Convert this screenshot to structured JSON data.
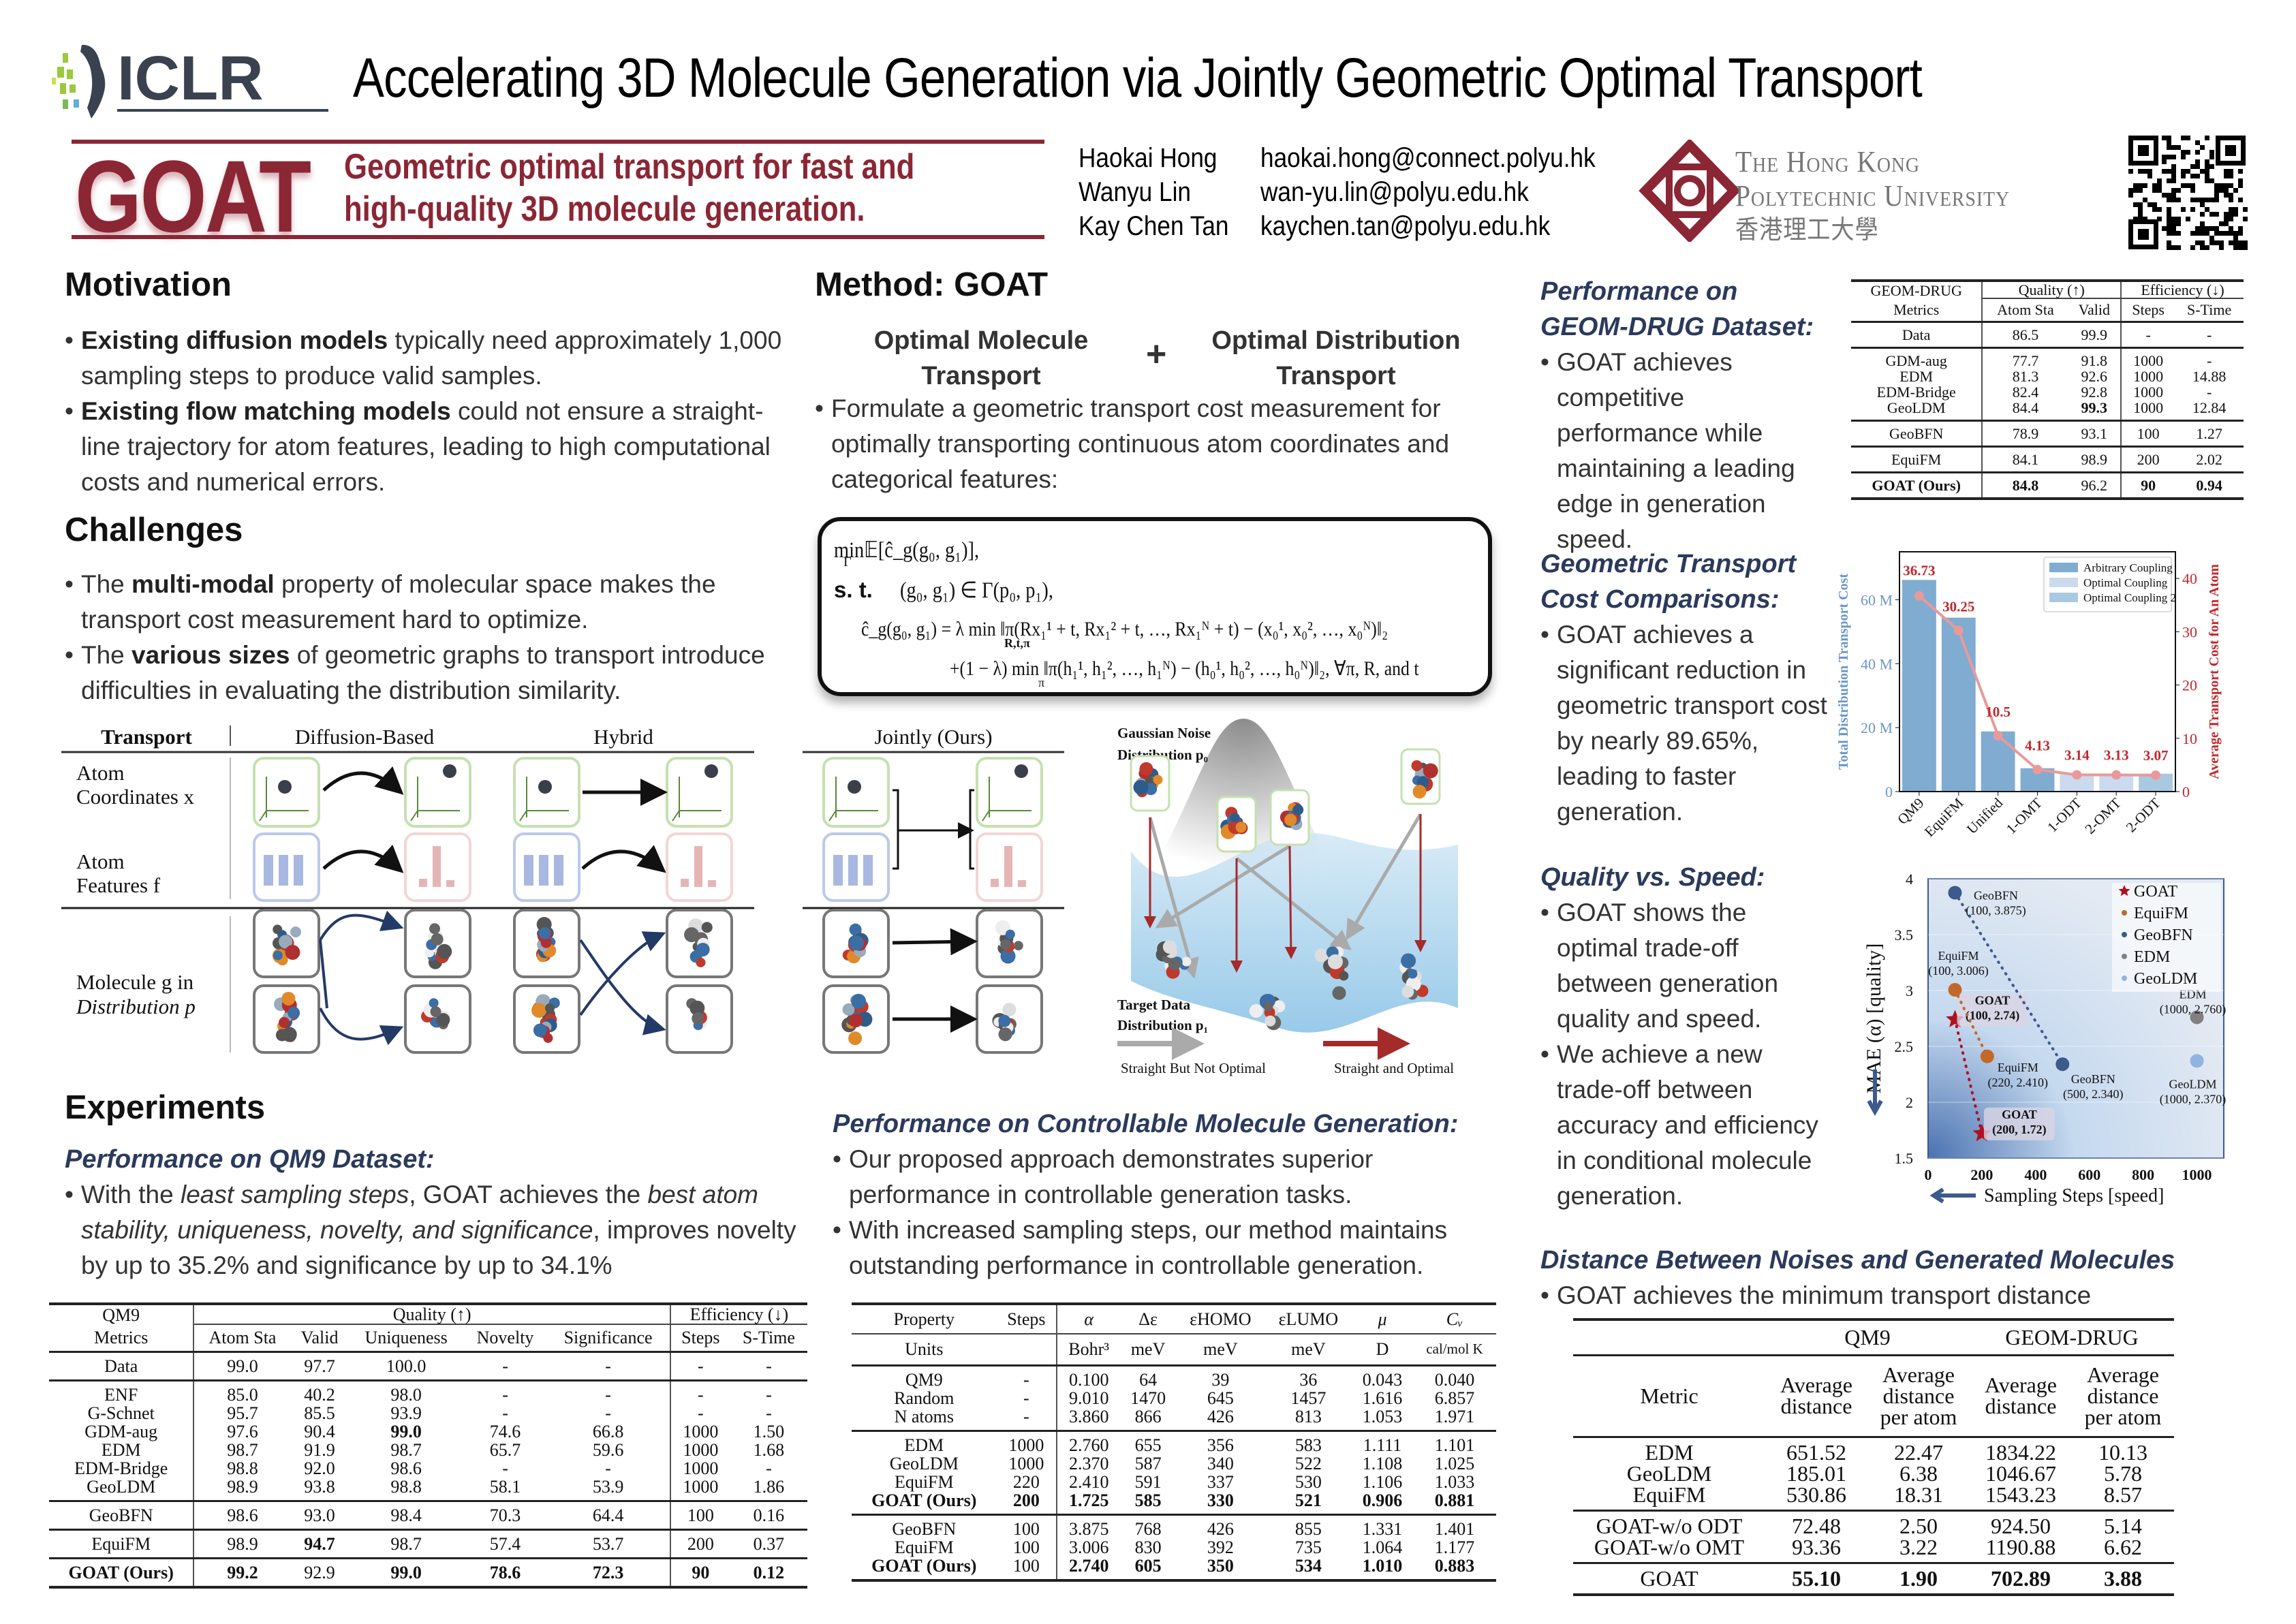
{
  "header": {
    "conference": "ICLR",
    "title": "Accelerating 3D Molecule Generation via Jointly Geometric Optimal Transport",
    "acronym": "GOAT",
    "tagline_line1": "Geometric optimal transport for fast and",
    "tagline_line2": "high-quality 3D molecule generation.",
    "authors": [
      {
        "name": "Haokai Hong",
        "email": "haokai.hong@connect.polyu.hk"
      },
      {
        "name": "Wanyu Lin",
        "email": "wan-yu.lin@polyu.edu.hk"
      },
      {
        "name": "Kay Chen Tan",
        "email": "kaychen.tan@polyu.edu.hk"
      }
    ],
    "university_line1": "The Hong Kong",
    "university_line2": "Polytechnic University",
    "university_chinese": "香港理工大學",
    "brand_color": "#8b2635"
  },
  "motivation": {
    "heading": "Motivation",
    "bullets": [
      [
        {
          "t": "Existing diffusion models",
          "s": "b"
        },
        {
          "t": " typically need approximately 1,000 sampling steps to produce valid samples."
        }
      ],
      [
        {
          "t": "Existing flow matching models",
          "s": "b"
        },
        {
          "t": " could not ensure a straight-line trajectory for atom features, leading to high computational costs and numerical errors."
        }
      ]
    ]
  },
  "challenges": {
    "heading": "Challenges",
    "bullets": [
      [
        {
          "t": "The "
        },
        {
          "t": "multi-modal",
          "s": "b"
        },
        {
          "t": " property of molecular space makes the transport cost measurement hard to optimize."
        }
      ],
      [
        {
          "t": "The "
        },
        {
          "t": "various sizes",
          "s": "b"
        },
        {
          "t": " of geometric graphs to transport introduce difficulties in evaluating the distribution similarity."
        }
      ]
    ]
  },
  "transport_figure": {
    "col_header": "Transport",
    "diffusion": "Diffusion-Based",
    "hybrid": "Hybrid",
    "jointly": "Jointly (Ours)",
    "row1_l1": "Atom",
    "row1_l2": "Coordinates x",
    "row2_l1": "Atom",
    "row2_l2": "Features f",
    "row3_l1": "Molecule g in",
    "row3_l2": "Distribution p",
    "noise_l1": "Gaussian Noise",
    "noise_l2": "Distribution p₀",
    "target_l1": "Target Data",
    "target_l2": "Distribution p₁",
    "legend_gray": "Straight But Not Optimal",
    "legend_red": "Straight and Optimal"
  },
  "method": {
    "heading": "Method: GOAT",
    "omt_l1": "Optimal Molecule",
    "omt_l2": "Transport",
    "plus": "+",
    "odt_l1": "Optimal Distribution",
    "odt_l2": "Transport",
    "bullets": [
      [
        {
          "t": "Formulate a geometric transport cost measurement for optimally transporting continuous atom coordinates and categorical features:"
        }
      ]
    ],
    "formula": {
      "l1": "min𝔼[ĉ_g(g₀, g₁)],",
      "l1_under": "Γ",
      "st": "s. t.",
      "l2": "(g₀, g₁) ∈ Γ(p₀, p₁),",
      "l3": "ĉ_g(g₀, g₁) = λ min ‖π(Rx₁¹ + t, Rx₁² + t, …, Rx₁ᴺ + t) − (x₀¹, x₀², …, x₀ᴺ)‖₂",
      "l3_under": "R,t,π",
      "l4": "+(1 − λ) min ‖π(h₁¹, h₁², …, h₁ᴺ) − (h₀¹, h₀², …, h₀ᴺ)‖₂, ∀π, R, and t",
      "l4_under": "π"
    }
  },
  "experiments": {
    "heading": "Experiments",
    "qm9_heading": "Performance on QM9 Dataset:",
    "qm9_bullets": [
      [
        {
          "t": "With the "
        },
        {
          "t": "least sampling steps",
          "s": "i"
        },
        {
          "t": ", GOAT achieves the "
        },
        {
          "t": "best atom stability, uniqueness, novelty, and significance",
          "s": "i"
        },
        {
          "t": ", improves novelty by up to 35.2% and significance by up to 34.1%"
        }
      ]
    ]
  },
  "qm9_table": {
    "h_dataset": "QM9",
    "h_quality": "Quality (↑)",
    "h_efficiency": "Efficiency (↓)",
    "cols": [
      "Metrics",
      "Atom Sta",
      "Valid",
      "Uniqueness",
      "Novelty",
      "Significance",
      "Steps",
      "S-Time"
    ],
    "groups": [
      [
        {
          "cells": [
            "Data",
            "99.0",
            "97.7",
            "100.0",
            "-",
            "-",
            "-",
            "-"
          ],
          "bold": []
        }
      ],
      [
        {
          "cells": [
            "ENF",
            "85.0",
            "40.2",
            "98.0",
            "-",
            "-",
            "-",
            "-"
          ],
          "bold": []
        },
        {
          "cells": [
            "G-Schnet",
            "95.7",
            "85.5",
            "93.9",
            "-",
            "-",
            "-",
            "-"
          ],
          "bold": []
        },
        {
          "cells": [
            "GDM-aug",
            "97.6",
            "90.4",
            "99.0",
            "74.6",
            "66.8",
            "1000",
            "1.50"
          ],
          "bold": [
            3
          ]
        },
        {
          "cells": [
            "EDM",
            "98.7",
            "91.9",
            "98.7",
            "65.7",
            "59.6",
            "1000",
            "1.68"
          ],
          "bold": []
        },
        {
          "cells": [
            "EDM-Bridge",
            "98.8",
            "92.0",
            "98.6",
            "-",
            "-",
            "1000",
            "-"
          ],
          "bold": []
        },
        {
          "cells": [
            "GeoLDM",
            "98.9",
            "93.8",
            "98.8",
            "58.1",
            "53.9",
            "1000",
            "1.86"
          ],
          "bold": []
        }
      ],
      [
        {
          "cells": [
            "GeoBFN",
            "98.6",
            "93.0",
            "98.4",
            "70.3",
            "64.4",
            "100",
            "0.16"
          ],
          "bold": []
        }
      ],
      [
        {
          "cells": [
            "EquiFM",
            "98.9",
            "94.7",
            "98.7",
            "57.4",
            "53.7",
            "200",
            "0.37"
          ],
          "bold": [
            2
          ]
        }
      ],
      [
        {
          "cells": [
            "GOAT (Ours)",
            "99.2",
            "92.9",
            "99.0",
            "78.6",
            "72.3",
            "90",
            "0.12"
          ],
          "bold": [
            0,
            1,
            3,
            4,
            5,
            6,
            7
          ]
        }
      ]
    ]
  },
  "controllable": {
    "heading": "Performance on Controllable Molecule Generation:",
    "bullets": [
      [
        {
          "t": "Our proposed approach demonstrates superior performance in controllable generation tasks."
        }
      ],
      [
        {
          "t": "With increased sampling steps, our method maintains outstanding performance in controllable generation."
        }
      ]
    ]
  },
  "controllable_table": {
    "cols": [
      "Property",
      "Steps",
      "α",
      "Δε",
      "εHOMO",
      "εLUMO",
      "μ",
      "Cᵥ"
    ],
    "units": [
      "Units",
      "",
      "Bohr³",
      "meV",
      "meV",
      "meV",
      "D",
      "cal/mol K"
    ],
    "groups": [
      [
        {
          "cells": [
            "QM9",
            "-",
            "0.100",
            "64",
            "39",
            "36",
            "0.043",
            "0.040"
          ],
          "bold": []
        },
        {
          "cells": [
            "Random",
            "-",
            "9.010",
            "1470",
            "645",
            "1457",
            "1.616",
            "6.857"
          ],
          "bold": []
        },
        {
          "cells": [
            "N atoms",
            "-",
            "3.860",
            "866",
            "426",
            "813",
            "1.053",
            "1.971"
          ],
          "bold": []
        }
      ],
      [
        {
          "cells": [
            "EDM",
            "1000",
            "2.760",
            "655",
            "356",
            "583",
            "1.111",
            "1.101"
          ],
          "bold": []
        },
        {
          "cells": [
            "GeoLDM",
            "1000",
            "2.370",
            "587",
            "340",
            "522",
            "1.108",
            "1.025"
          ],
          "bold": []
        },
        {
          "cells": [
            "EquiFM",
            "220",
            "2.410",
            "591",
            "337",
            "530",
            "1.106",
            "1.033"
          ],
          "bold": []
        },
        {
          "cells": [
            "GOAT (Ours)",
            "200",
            "1.725",
            "585",
            "330",
            "521",
            "0.906",
            "0.881"
          ],
          "bold": [
            0,
            1,
            2,
            3,
            4,
            5,
            6,
            7
          ]
        }
      ],
      [
        {
          "cells": [
            "GeoBFN",
            "100",
            "3.875",
            "768",
            "426",
            "855",
            "1.331",
            "1.401"
          ],
          "bold": []
        },
        {
          "cells": [
            "EquiFM",
            "100",
            "3.006",
            "830",
            "392",
            "735",
            "1.064",
            "1.177"
          ],
          "bold": []
        },
        {
          "cells": [
            "GOAT (Ours)",
            "100",
            "2.740",
            "605",
            "350",
            "534",
            "1.010",
            "0.883"
          ],
          "bold": [
            0,
            2,
            3,
            4,
            5,
            6,
            7
          ]
        }
      ]
    ]
  },
  "geom": {
    "heading_l1": "Performance on",
    "heading_l2": "GEOM-DRUG Dataset:",
    "bullets": [
      [
        {
          "t": "GOAT achieves competitive performance while maintaining a leading edge in generation speed."
        }
      ]
    ]
  },
  "geom_table": {
    "h_dataset": "GEOM-DRUG",
    "h_quality": "Quality (↑)",
    "h_efficiency": "Efficiency (↓)",
    "cols": [
      "Metrics",
      "Atom Sta",
      "Valid",
      "Steps",
      "S-Time"
    ],
    "groups": [
      [
        {
          "cells": [
            "Data",
            "86.5",
            "99.9",
            "-",
            "-"
          ],
          "bold": []
        }
      ],
      [
        {
          "cells": [
            "GDM-aug",
            "77.7",
            "91.8",
            "1000",
            "-"
          ],
          "bold": []
        },
        {
          "cells": [
            "EDM",
            "81.3",
            "92.6",
            "1000",
            "14.88"
          ],
          "bold": []
        },
        {
          "cells": [
            "EDM-Bridge",
            "82.4",
            "92.8",
            "1000",
            "-"
          ],
          "bold": []
        },
        {
          "cells": [
            "GeoLDM",
            "84.4",
            "99.3",
            "1000",
            "12.84"
          ],
          "bold": [
            2
          ]
        }
      ],
      [
        {
          "cells": [
            "GeoBFN",
            "78.9",
            "93.1",
            "100",
            "1.27"
          ],
          "bold": []
        }
      ],
      [
        {
          "cells": [
            "EquiFM",
            "84.1",
            "98.9",
            "200",
            "2.02"
          ],
          "bold": []
        }
      ],
      [
        {
          "cells": [
            "GOAT (Ours)",
            "84.8",
            "96.2",
            "90",
            "0.94"
          ],
          "bold": [
            0,
            1,
            3,
            4
          ]
        }
      ]
    ]
  },
  "transport_cost": {
    "heading_l1": "Geometric Transport",
    "heading_l2": "Cost Comparisons:",
    "bullets": [
      [
        {
          "t": "GOAT achieves a significant reduction in geometric transport cost by nearly 89.65%, leading to faster generation."
        }
      ]
    ]
  },
  "quality_speed": {
    "heading": "Quality vs. Speed:",
    "bullets": [
      [
        {
          "t": "GOAT shows the optimal trade-off between generation quality and speed."
        }
      ],
      [
        {
          "t": "We achieve a new trade-off between accuracy and efficiency in conditional molecule generation."
        }
      ]
    ]
  },
  "distance": {
    "heading": "Distance Between Noises and Generated Molecules",
    "bullets": [
      [
        {
          "t": "GOAT achieves the minimum transport distance"
        }
      ]
    ]
  },
  "distance_table": {
    "h_qm9": "QM9",
    "h_geom": "GEOM-DRUG",
    "h_metric": "Metric",
    "h_avg": "Average distance",
    "h_avg_atom": "Average distance per atom",
    "groups": [
      [
        {
          "cells": [
            "EDM",
            "651.52",
            "22.47",
            "1834.22",
            "10.13"
          ],
          "bold": []
        },
        {
          "cells": [
            "GeoLDM",
            "185.01",
            "6.38",
            "1046.67",
            "5.78"
          ],
          "bold": []
        },
        {
          "cells": [
            "EquiFM",
            "530.86",
            "18.31",
            "1543.23",
            "8.57"
          ],
          "bold": []
        }
      ],
      [
        {
          "cells": [
            "GOAT-w/o ODT",
            "72.48",
            "2.50",
            "924.50",
            "5.14"
          ],
          "bold": []
        },
        {
          "cells": [
            "GOAT-w/o OMT",
            "93.36",
            "3.22",
            "1190.88",
            "6.62"
          ],
          "bold": []
        }
      ],
      [
        {
          "cells": [
            "GOAT",
            "55.10",
            "1.90",
            "702.89",
            "3.88"
          ],
          "bold": [
            1,
            2,
            3,
            4
          ]
        }
      ]
    ]
  },
  "chart_data": [
    {
      "type": "bar",
      "categories": [
        "QM9",
        "EquiFM",
        "Unified",
        "1-OMT",
        "1-ODT",
        "2-OMT",
        "2-ODT"
      ],
      "bar_values": [
        66.2,
        54.4,
        18.8,
        7.3,
        5.6,
        5.6,
        5.6
      ],
      "bar_groups": [
        "Arbitrary Coupling",
        "Arbitrary Coupling",
        "Arbitrary Coupling",
        "Arbitrary Coupling",
        "Optimal Coupling",
        "Optimal Coupling",
        "Optimal Coupling 2"
      ],
      "line_values": [
        36.73,
        30.25,
        10.5,
        4.13,
        3.14,
        3.13,
        3.07
      ],
      "line_labels": [
        "36.73",
        "30.25",
        "10.5",
        "4.13",
        "3.14",
        "3.13",
        "3.07"
      ],
      "legend": [
        {
          "name": "Arbitrary Coupling",
          "color": "#80acd2"
        },
        {
          "name": "Optimal Coupling",
          "color": "#cbdaef"
        },
        {
          "name": "Optimal Coupling 2",
          "color": "#a9c9e0"
        }
      ],
      "legend_position": "top-right",
      "ylabel_left": "Total Distribution Transport Cost",
      "ylabel_right": "Average Transport Cost for An Atom",
      "ylim_left": [
        0,
        75
      ],
      "yticks_left": [
        "0",
        "20 M",
        "40 M",
        "60 M"
      ],
      "yticks_left_values": [
        0,
        20,
        40,
        60
      ],
      "ylim_right": [
        0,
        45
      ],
      "yticks_right": [
        0,
        10,
        20,
        30,
        40
      ],
      "left_color": "#6b96c9",
      "line_color": "#e89a9a",
      "label_color": "#c0282d"
    },
    {
      "type": "scatter",
      "xlabel": "Sampling Steps [speed]",
      "ylabel": "MAE (α) [quality]",
      "xlim": [
        0,
        1100
      ],
      "ylim": [
        1.5,
        4
      ],
      "xticks": [
        0,
        200,
        400,
        600,
        800,
        1000
      ],
      "yticks": [
        1.5,
        2,
        2.5,
        3,
        3.5,
        4
      ],
      "legend_position": "top-right",
      "series": [
        {
          "name": "GOAT",
          "color": "#b01020",
          "marker": "star",
          "points": [
            {
              "x": 100,
              "y": 2.74,
              "label_name": "GOAT",
              "label": "(100, 2.74)"
            },
            {
              "x": 200,
              "y": 1.72,
              "label_name": "GOAT",
              "label": "(200, 1.72)"
            }
          ]
        },
        {
          "name": "EquiFM",
          "color": "#c0692a",
          "marker": "circle",
          "points": [
            {
              "x": 100,
              "y": 3.006,
              "label_name": "EquiFM",
              "label": "(100, 3.006)"
            },
            {
              "x": 220,
              "y": 2.41,
              "label_name": "EquiFM",
              "label": "(220, 2.410)"
            }
          ]
        },
        {
          "name": "GeoBFN",
          "color": "#3d5a8c",
          "marker": "circle",
          "points": [
            {
              "x": 100,
              "y": 3.875,
              "label_name": "GeoBFN",
              "label": "(100, 3.875)"
            },
            {
              "x": 500,
              "y": 2.34,
              "label_name": "GeoBFN",
              "label": "(500, 2.340)"
            }
          ]
        },
        {
          "name": "EDM",
          "color": "#808080",
          "marker": "circle",
          "points": [
            {
              "x": 1000,
              "y": 2.76,
              "label_name": "EDM",
              "label": "(1000, 2.760)"
            }
          ]
        },
        {
          "name": "GeoLDM",
          "color": "#8fb4e0",
          "marker": "circle",
          "points": [
            {
              "x": 1000,
              "y": 2.37,
              "label_name": "GeoLDM",
              "label": "(1000, 2.370)"
            }
          ]
        }
      ]
    }
  ]
}
